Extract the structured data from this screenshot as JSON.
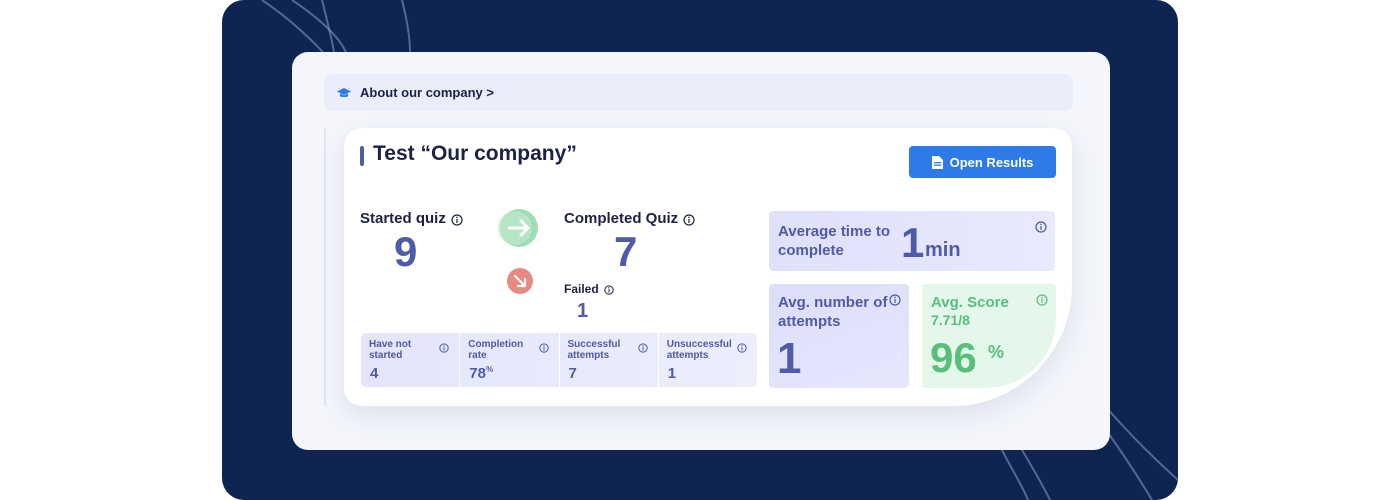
{
  "colors": {
    "backdrop": "#0d2550",
    "accent": "#4e5ba6",
    "button": "#2e7be8",
    "success": "#56c07b",
    "fail": "#e5756b"
  },
  "breadcrumb": {
    "icon": "graduation-cap-icon",
    "label": "About our company >"
  },
  "panel": {
    "title": "Test “Our company”",
    "open_results_button": {
      "label": "Open Results",
      "icon": "document-icon"
    },
    "started": {
      "label": "Started quiz",
      "value": "9"
    },
    "completed": {
      "label": "Completed Quiz",
      "value": "7"
    },
    "failed": {
      "label": "Failed",
      "value": "1"
    },
    "mini_stats": [
      {
        "label": "Have not started",
        "value": "4",
        "unit": ""
      },
      {
        "label": "Completion rate",
        "value": "78",
        "unit": "%"
      },
      {
        "label": "Successful attempts",
        "value": "7",
        "unit": ""
      },
      {
        "label": "Unsuccessful attempts",
        "value": "1",
        "unit": ""
      }
    ],
    "avg_time": {
      "label": "Average time to complete",
      "value": "1",
      "unit": "min"
    },
    "avg_attempts": {
      "label": "Avg. number of attempts",
      "value": "1"
    },
    "avg_score": {
      "label": "Avg. Score",
      "sub": "7.71/8",
      "value": "96",
      "unit": "%"
    }
  }
}
